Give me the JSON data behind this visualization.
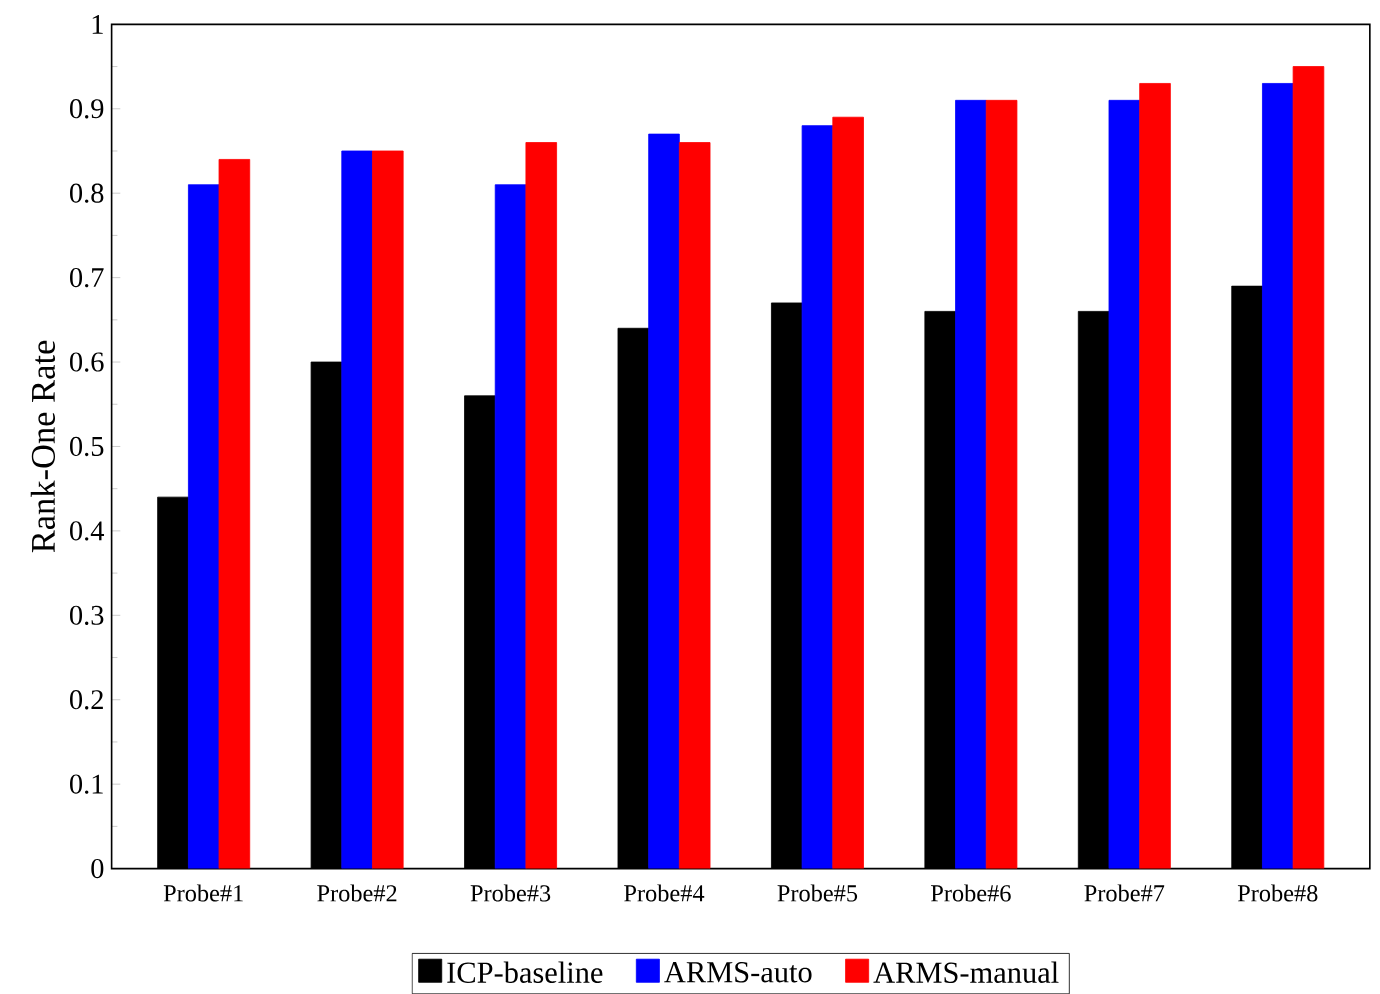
{
  "chart_data": {
    "type": "bar",
    "ylabel": "Rank-One Rate",
    "categories": [
      "Probe#1",
      "Probe#2",
      "Probe#3",
      "Probe#4",
      "Probe#5",
      "Probe#6",
      "Probe#7",
      "Probe#8"
    ],
    "series": [
      {
        "name": "ICP-baseline",
        "color": "#000000",
        "values": [
          0.44,
          0.6,
          0.56,
          0.64,
          0.67,
          0.66,
          0.66,
          0.69
        ]
      },
      {
        "name": "ARMS-auto",
        "color": "#0000ff",
        "values": [
          0.81,
          0.85,
          0.81,
          0.87,
          0.88,
          0.91,
          0.91,
          0.93
        ]
      },
      {
        "name": "ARMS-manual",
        "color": "#ff0000",
        "values": [
          0.84,
          0.85,
          0.86,
          0.86,
          0.89,
          0.91,
          0.93,
          0.95
        ]
      }
    ],
    "ylim": [
      0,
      1
    ],
    "yticks": [
      0,
      0.1,
      0.2,
      0.3,
      0.4,
      0.5,
      0.6,
      0.7,
      0.8,
      0.9,
      1
    ],
    "grid": false,
    "legend": "bottom"
  }
}
